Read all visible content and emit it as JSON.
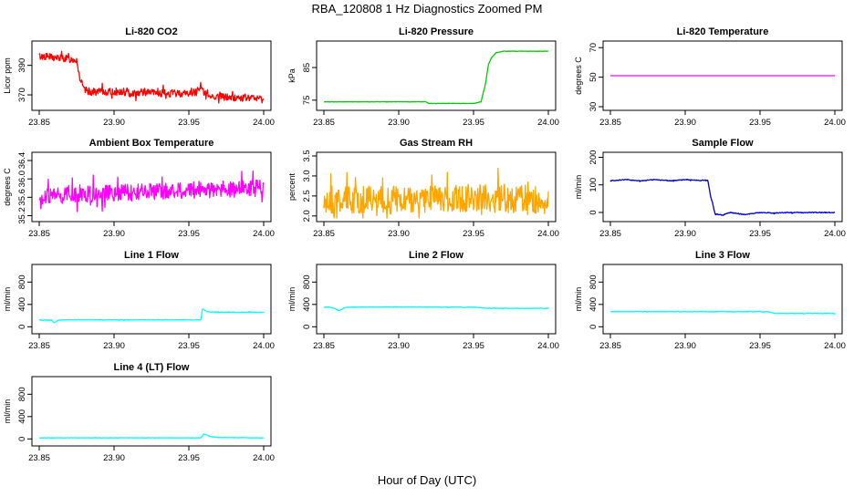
{
  "figure": {
    "title": "RBA_120808  1 Hz Diagnostics Zoomed PM",
    "xlabel": "Hour of Day (UTC)"
  },
  "chart_data": [
    {
      "type": "line",
      "title": "Li-820 CO2",
      "ylabel": "Licor ppm",
      "color": "#ff0000",
      "xlim": [
        23.85,
        24.0
      ],
      "ylim": [
        362,
        404
      ],
      "xticks": [
        23.85,
        23.9,
        23.95,
        24.0
      ],
      "xticklabels": [
        "23.85",
        "23.90",
        "23.95",
        "24.00"
      ],
      "yticks": [
        370,
        390
      ],
      "yticklabels": [
        "370",
        "390"
      ],
      "x": [
        23.85,
        23.855,
        23.86,
        23.865,
        23.87,
        23.875,
        23.877,
        23.88,
        23.885,
        23.89,
        23.9,
        23.91,
        23.92,
        23.93,
        23.94,
        23.95,
        23.955,
        23.958,
        23.96,
        23.965,
        23.97,
        23.98,
        23.99,
        24.0
      ],
      "y": [
        396,
        396,
        395,
        395,
        394,
        394,
        382,
        373,
        372,
        372,
        372,
        371,
        372,
        371,
        371,
        371,
        372,
        377,
        371,
        369,
        369,
        368,
        368,
        367
      ],
      "noise": 2.5
    },
    {
      "type": "line",
      "title": "Li-820 Pressure",
      "ylabel": "kPa",
      "color": "#00cc00",
      "xlim": [
        23.85,
        24.0
      ],
      "ylim": [
        73,
        92
      ],
      "xticks": [
        23.85,
        23.9,
        23.95,
        24.0
      ],
      "xticklabels": [
        "23.85",
        "23.90",
        "23.95",
        "24.00"
      ],
      "yticks": [
        75,
        85
      ],
      "yticklabels": [
        "75",
        "85"
      ],
      "x": [
        23.85,
        23.9,
        23.918,
        23.92,
        23.95,
        23.955,
        23.958,
        23.96,
        23.962,
        23.965,
        23.97,
        23.98,
        24.0
      ],
      "y": [
        74.5,
        74.5,
        74.5,
        74,
        74,
        74.5,
        80,
        86,
        88,
        89.5,
        90,
        90,
        90
      ],
      "noise": 0.05
    },
    {
      "type": "line",
      "title": "Li-820 Temperature",
      "ylabel": "degrees C",
      "color": "#ff00ff",
      "xlim": [
        23.85,
        24.0
      ],
      "ylim": [
        30,
        72
      ],
      "xticks": [
        23.85,
        23.9,
        23.95,
        24.0
      ],
      "xticklabels": [
        "23.85",
        "23.90",
        "23.95",
        "24.00"
      ],
      "yticks": [
        30,
        50,
        70
      ],
      "yticklabels": [
        "30",
        "50",
        "70"
      ],
      "x": [
        23.85,
        24.0
      ],
      "y": [
        51,
        51
      ],
      "noise": 0
    },
    {
      "type": "line",
      "title": "Ambient Box Temperature",
      "ylabel": "degrees C",
      "color": "#ff00ff",
      "xlim": [
        23.85,
        24.0
      ],
      "ylim": [
        35.15,
        36.5
      ],
      "xticks": [
        23.85,
        23.9,
        23.95,
        24.0
      ],
      "xticklabels": [
        "23.85",
        "23.90",
        "23.95",
        "24.00"
      ],
      "yticks": [
        35.2,
        35.6,
        36.0,
        36.4
      ],
      "yticklabels": [
        "35.2",
        "35.6",
        "36.0",
        "36.4"
      ],
      "x": [
        23.85,
        23.9,
        23.95,
        24.0
      ],
      "y": [
        35.6,
        35.7,
        35.75,
        35.8
      ],
      "noise": 0.18
    },
    {
      "type": "line",
      "title": "Gas Stream RH",
      "ylabel": "percent",
      "color": "#ffa500",
      "xlim": [
        23.85,
        24.0
      ],
      "ylim": [
        1.95,
        3.5
      ],
      "xticks": [
        23.85,
        23.9,
        23.95,
        24.0
      ],
      "xticklabels": [
        "23.85",
        "23.90",
        "23.95",
        "24.00"
      ],
      "yticks": [
        2.0,
        2.5,
        3.0,
        3.5
      ],
      "yticklabels": [
        "2.0",
        "2.5",
        "3.0",
        "3.5"
      ],
      "x": [
        23.85,
        23.9,
        23.95,
        24.0
      ],
      "y": [
        2.4,
        2.4,
        2.45,
        2.4
      ],
      "noise": 0.35
    },
    {
      "type": "line",
      "title": "Sample Flow",
      "ylabel": "ml/min",
      "color": "#0000cc",
      "xlim": [
        23.85,
        24.0
      ],
      "ylim": [
        -20,
        205
      ],
      "xticks": [
        23.85,
        23.9,
        23.95,
        24.0
      ],
      "xticklabels": [
        "23.85",
        "23.90",
        "23.95",
        "24.00"
      ],
      "yticks": [
        0,
        100,
        200
      ],
      "yticklabels": [
        "0",
        "100",
        "200"
      ],
      "x": [
        23.85,
        23.86,
        23.87,
        23.88,
        23.89,
        23.9,
        23.91,
        23.915,
        23.917,
        23.92,
        23.925,
        23.93,
        23.94,
        23.95,
        23.96,
        23.97,
        23.98,
        23.99,
        24.0
      ],
      "y": [
        115,
        119,
        115,
        119,
        115,
        119,
        116,
        118,
        60,
        -5,
        -10,
        0,
        -8,
        0,
        -2,
        0,
        -1,
        0,
        0
      ],
      "noise": 1.5
    },
    {
      "type": "line",
      "title": "Line 1 Flow",
      "ylabel": "ml/min",
      "color": "#00ffff",
      "xlim": [
        23.85,
        24.0
      ],
      "ylim": [
        -60,
        1050
      ],
      "xticks": [
        23.85,
        23.9,
        23.95,
        24.0
      ],
      "xticklabels": [
        "23.85",
        "23.90",
        "23.95",
        "24.00"
      ],
      "yticks": [
        0,
        400,
        800
      ],
      "yticklabels": [
        "0",
        "400",
        "800"
      ],
      "x": [
        23.85,
        23.858,
        23.86,
        23.863,
        23.87,
        23.9,
        23.95,
        23.958,
        23.959,
        23.962,
        23.97,
        24.0
      ],
      "y": [
        120,
        120,
        70,
        120,
        125,
        125,
        125,
        125,
        320,
        270,
        260,
        260
      ],
      "noise": 5
    },
    {
      "type": "line",
      "title": "Line 2 Flow",
      "ylabel": "ml/min",
      "color": "#00ffff",
      "xlim": [
        23.85,
        24.0
      ],
      "ylim": [
        -60,
        1050
      ],
      "xticks": [
        23.85,
        23.9,
        23.95,
        24.0
      ],
      "xticklabels": [
        "23.85",
        "23.90",
        "23.95",
        "24.00"
      ],
      "yticks": [
        0,
        400,
        800
      ],
      "yticklabels": [
        "0",
        "400",
        "800"
      ],
      "x": [
        23.85,
        23.855,
        23.86,
        23.865,
        23.9,
        23.95,
        23.96,
        24.0
      ],
      "y": [
        350,
        350,
        290,
        350,
        355,
        350,
        330,
        330
      ],
      "noise": 5
    },
    {
      "type": "line",
      "title": "Line 3 Flow",
      "ylabel": "ml/min",
      "color": "#00ffff",
      "xlim": [
        23.85,
        24.0
      ],
      "ylim": [
        -60,
        1050
      ],
      "xticks": [
        23.85,
        23.9,
        23.95,
        24.0
      ],
      "xticklabels": [
        "23.85",
        "23.90",
        "23.95",
        "24.00"
      ],
      "yticks": [
        0,
        400,
        800
      ],
      "yticklabels": [
        "0",
        "400",
        "800"
      ],
      "x": [
        23.85,
        23.9,
        23.955,
        23.96,
        24.0
      ],
      "y": [
        270,
        270,
        270,
        240,
        240
      ],
      "noise": 5
    },
    {
      "type": "line",
      "title": "Line 4 (LT) Flow",
      "ylabel": "ml/min",
      "color": "#00ffff",
      "xlim": [
        23.85,
        24.0
      ],
      "ylim": [
        -60,
        1050
      ],
      "xticks": [
        23.85,
        23.9,
        23.95,
        24.0
      ],
      "xticklabels": [
        "23.85",
        "23.90",
        "23.95",
        "24.00"
      ],
      "yticks": [
        0,
        400,
        800
      ],
      "yticklabels": [
        "0",
        "400",
        "800"
      ],
      "x": [
        23.85,
        23.95,
        23.958,
        23.96,
        23.965,
        23.97,
        24.0
      ],
      "y": [
        20,
        20,
        20,
        90,
        40,
        25,
        20
      ],
      "noise": 4
    }
  ]
}
